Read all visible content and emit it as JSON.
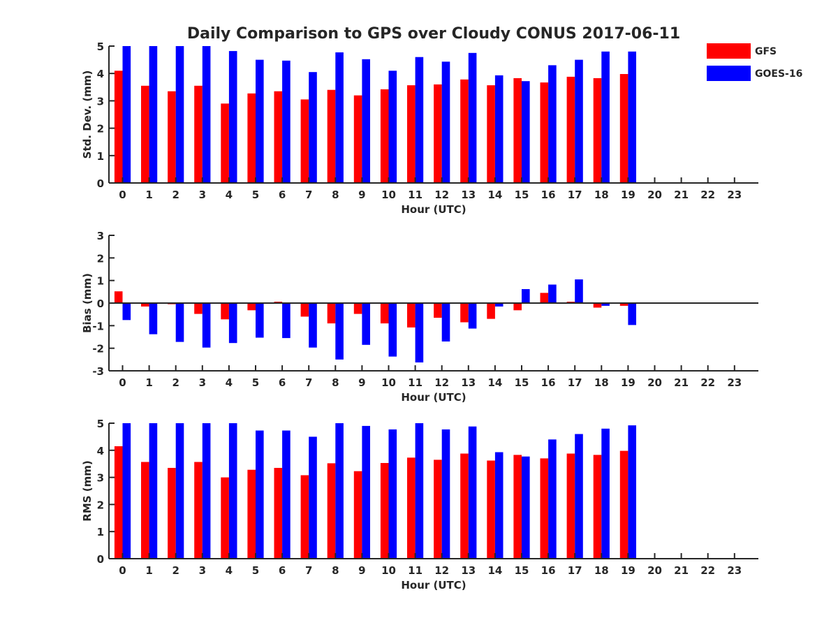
{
  "title": "Daily Comparison to GPS over Cloudy CONUS 2017-06-11",
  "legend": {
    "position": "top-right",
    "entries": [
      {
        "name": "GFS",
        "color": "#ff0000"
      },
      {
        "name": "GOES-16",
        "color": "#0000ff"
      }
    ]
  },
  "chart_data": [
    {
      "type": "bar",
      "ylabel": "Std. Dev. (mm)",
      "xlabel": "Hour (UTC)",
      "ylim": [
        0,
        5
      ],
      "yticks": [
        "0",
        "1",
        "2",
        "3",
        "4",
        "5"
      ],
      "categories": [
        "0",
        "1",
        "2",
        "3",
        "4",
        "5",
        "6",
        "7",
        "8",
        "9",
        "10",
        "11",
        "12",
        "13",
        "14",
        "15",
        "16",
        "17",
        "18",
        "19",
        "20",
        "21",
        "22",
        "23"
      ],
      "series": [
        {
          "name": "GFS",
          "color": "#ff0000",
          "values": [
            4.1,
            3.55,
            3.35,
            3.55,
            2.9,
            3.27,
            3.35,
            3.05,
            3.4,
            3.2,
            3.42,
            3.57,
            3.6,
            3.78,
            3.57,
            3.83,
            3.67,
            3.88,
            3.83,
            3.98,
            null,
            null,
            null,
            null
          ]
        },
        {
          "name": "GOES-16",
          "color": "#0000ff",
          "values": [
            5.0,
            5.0,
            5.0,
            5.0,
            4.82,
            4.5,
            4.47,
            4.05,
            4.77,
            4.52,
            4.1,
            4.6,
            4.43,
            4.75,
            3.93,
            3.72,
            4.3,
            4.5,
            4.8,
            4.8,
            null,
            null,
            null,
            null
          ]
        }
      ]
    },
    {
      "type": "bar",
      "ylabel": "Bias (mm)",
      "xlabel": "Hour (UTC)",
      "ylim": [
        -3,
        3
      ],
      "yticks": [
        "-3",
        "-2",
        "-1",
        "0",
        "1",
        "2",
        "3"
      ],
      "categories": [
        "0",
        "1",
        "2",
        "3",
        "4",
        "5",
        "6",
        "7",
        "8",
        "9",
        "10",
        "11",
        "12",
        "13",
        "14",
        "15",
        "16",
        "17",
        "18",
        "19",
        "20",
        "21",
        "22",
        "23"
      ],
      "series": [
        {
          "name": "GFS",
          "color": "#ff0000",
          "values": [
            0.52,
            -0.15,
            -0.05,
            -0.48,
            -0.72,
            -0.32,
            0.06,
            -0.6,
            -0.9,
            -0.48,
            -0.9,
            -1.08,
            -0.65,
            -0.85,
            -0.7,
            -0.32,
            0.45,
            0.06,
            -0.2,
            -0.12,
            null,
            null,
            null,
            null
          ]
        },
        {
          "name": "GOES-16",
          "color": "#0000ff",
          "values": [
            -0.75,
            -1.38,
            -1.72,
            -1.97,
            -1.77,
            -1.53,
            -1.55,
            -1.97,
            -2.5,
            -1.85,
            -2.37,
            -2.63,
            -1.7,
            -1.13,
            -0.15,
            0.62,
            0.82,
            1.05,
            -0.12,
            -0.97,
            null,
            null,
            null,
            null
          ]
        }
      ]
    },
    {
      "type": "bar",
      "ylabel": "RMS (mm)",
      "xlabel": "Hour (UTC)",
      "ylim": [
        0,
        5
      ],
      "yticks": [
        "0",
        "1",
        "2",
        "3",
        "4",
        "5"
      ],
      "categories": [
        "0",
        "1",
        "2",
        "3",
        "4",
        "5",
        "6",
        "7",
        "8",
        "9",
        "10",
        "11",
        "12",
        "13",
        "14",
        "15",
        "16",
        "17",
        "18",
        "19",
        "20",
        "21",
        "22",
        "23"
      ],
      "series": [
        {
          "name": "GFS",
          "color": "#ff0000",
          "values": [
            4.15,
            3.57,
            3.35,
            3.57,
            3.0,
            3.28,
            3.35,
            3.08,
            3.52,
            3.23,
            3.53,
            3.73,
            3.65,
            3.88,
            3.62,
            3.83,
            3.7,
            3.88,
            3.83,
            3.98,
            null,
            null,
            null,
            null
          ]
        },
        {
          "name": "GOES-16",
          "color": "#0000ff",
          "values": [
            5.0,
            5.0,
            5.0,
            5.0,
            5.0,
            4.73,
            4.73,
            4.5,
            5.0,
            4.9,
            4.77,
            5.0,
            4.77,
            4.88,
            3.93,
            3.77,
            4.4,
            4.6,
            4.8,
            4.92,
            null,
            null,
            null,
            null
          ]
        }
      ]
    }
  ]
}
